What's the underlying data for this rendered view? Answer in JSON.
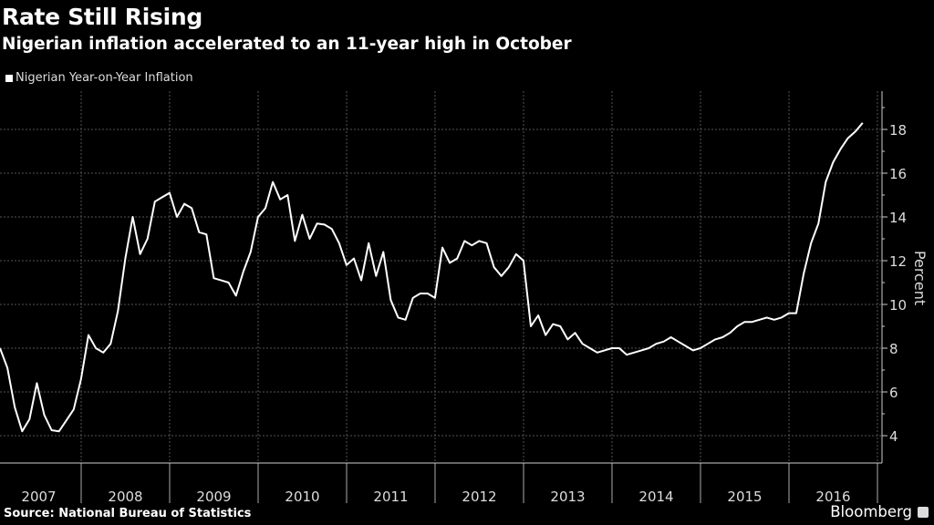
{
  "chart_data": {
    "type": "line",
    "title": "Rate Still Rising",
    "subtitle": "Nigerian inflation accelerated to an 11-year high in October",
    "ylabel": "Percent",
    "xlabel": "",
    "ylim": [
      2.75,
      19.75
    ],
    "yticks": [
      4,
      6,
      8,
      10,
      12,
      14,
      16,
      18
    ],
    "x_start": "2007-01",
    "x_frequency": "monthly",
    "x_tick_labels": [
      "2007",
      "2008",
      "2009",
      "2010",
      "2011",
      "2012",
      "2013",
      "2014",
      "2015",
      "2016"
    ],
    "grid": true,
    "legend_placement": "top-left",
    "series": [
      {
        "name": "Nigerian Year-on-Year Inflation",
        "color": "#ffffff",
        "values": [
          8.0,
          7.1,
          5.3,
          4.2,
          4.75,
          6.4,
          4.95,
          4.25,
          4.2,
          4.7,
          5.2,
          6.6,
          8.6,
          8.0,
          7.8,
          8.2,
          9.7,
          12.1,
          14.0,
          12.3,
          13.0,
          14.7,
          14.9,
          15.1,
          14.0,
          14.6,
          14.4,
          13.3,
          13.2,
          11.2,
          11.1,
          11.0,
          10.4,
          11.5,
          12.4,
          14.0,
          14.4,
          15.6,
          14.8,
          15.0,
          12.9,
          14.1,
          13.0,
          13.7,
          13.65,
          13.45,
          12.8,
          11.8,
          12.1,
          11.1,
          12.8,
          11.3,
          12.4,
          10.2,
          9.4,
          9.3,
          10.3,
          10.5,
          10.5,
          10.3,
          12.6,
          11.9,
          12.1,
          12.9,
          12.7,
          12.9,
          12.8,
          11.7,
          11.3,
          11.7,
          12.3,
          12.0,
          9.0,
          9.5,
          8.6,
          9.1,
          9.0,
          8.4,
          8.7,
          8.2,
          8.0,
          7.8,
          7.9,
          8.0,
          8.0,
          7.7,
          7.8,
          7.9,
          8.0,
          8.2,
          8.3,
          8.5,
          8.3,
          8.1,
          7.9,
          8.0,
          8.2,
          8.4,
          8.5,
          8.7,
          9.0,
          9.2,
          9.2,
          9.3,
          9.4,
          9.3,
          9.4,
          9.6,
          9.6,
          11.4,
          12.8,
          13.7,
          15.6,
          16.5,
          17.1,
          17.6,
          17.9,
          18.3
        ]
      }
    ],
    "source": "Source: National Bureau of Statistics",
    "logo": "Bloomberg"
  }
}
